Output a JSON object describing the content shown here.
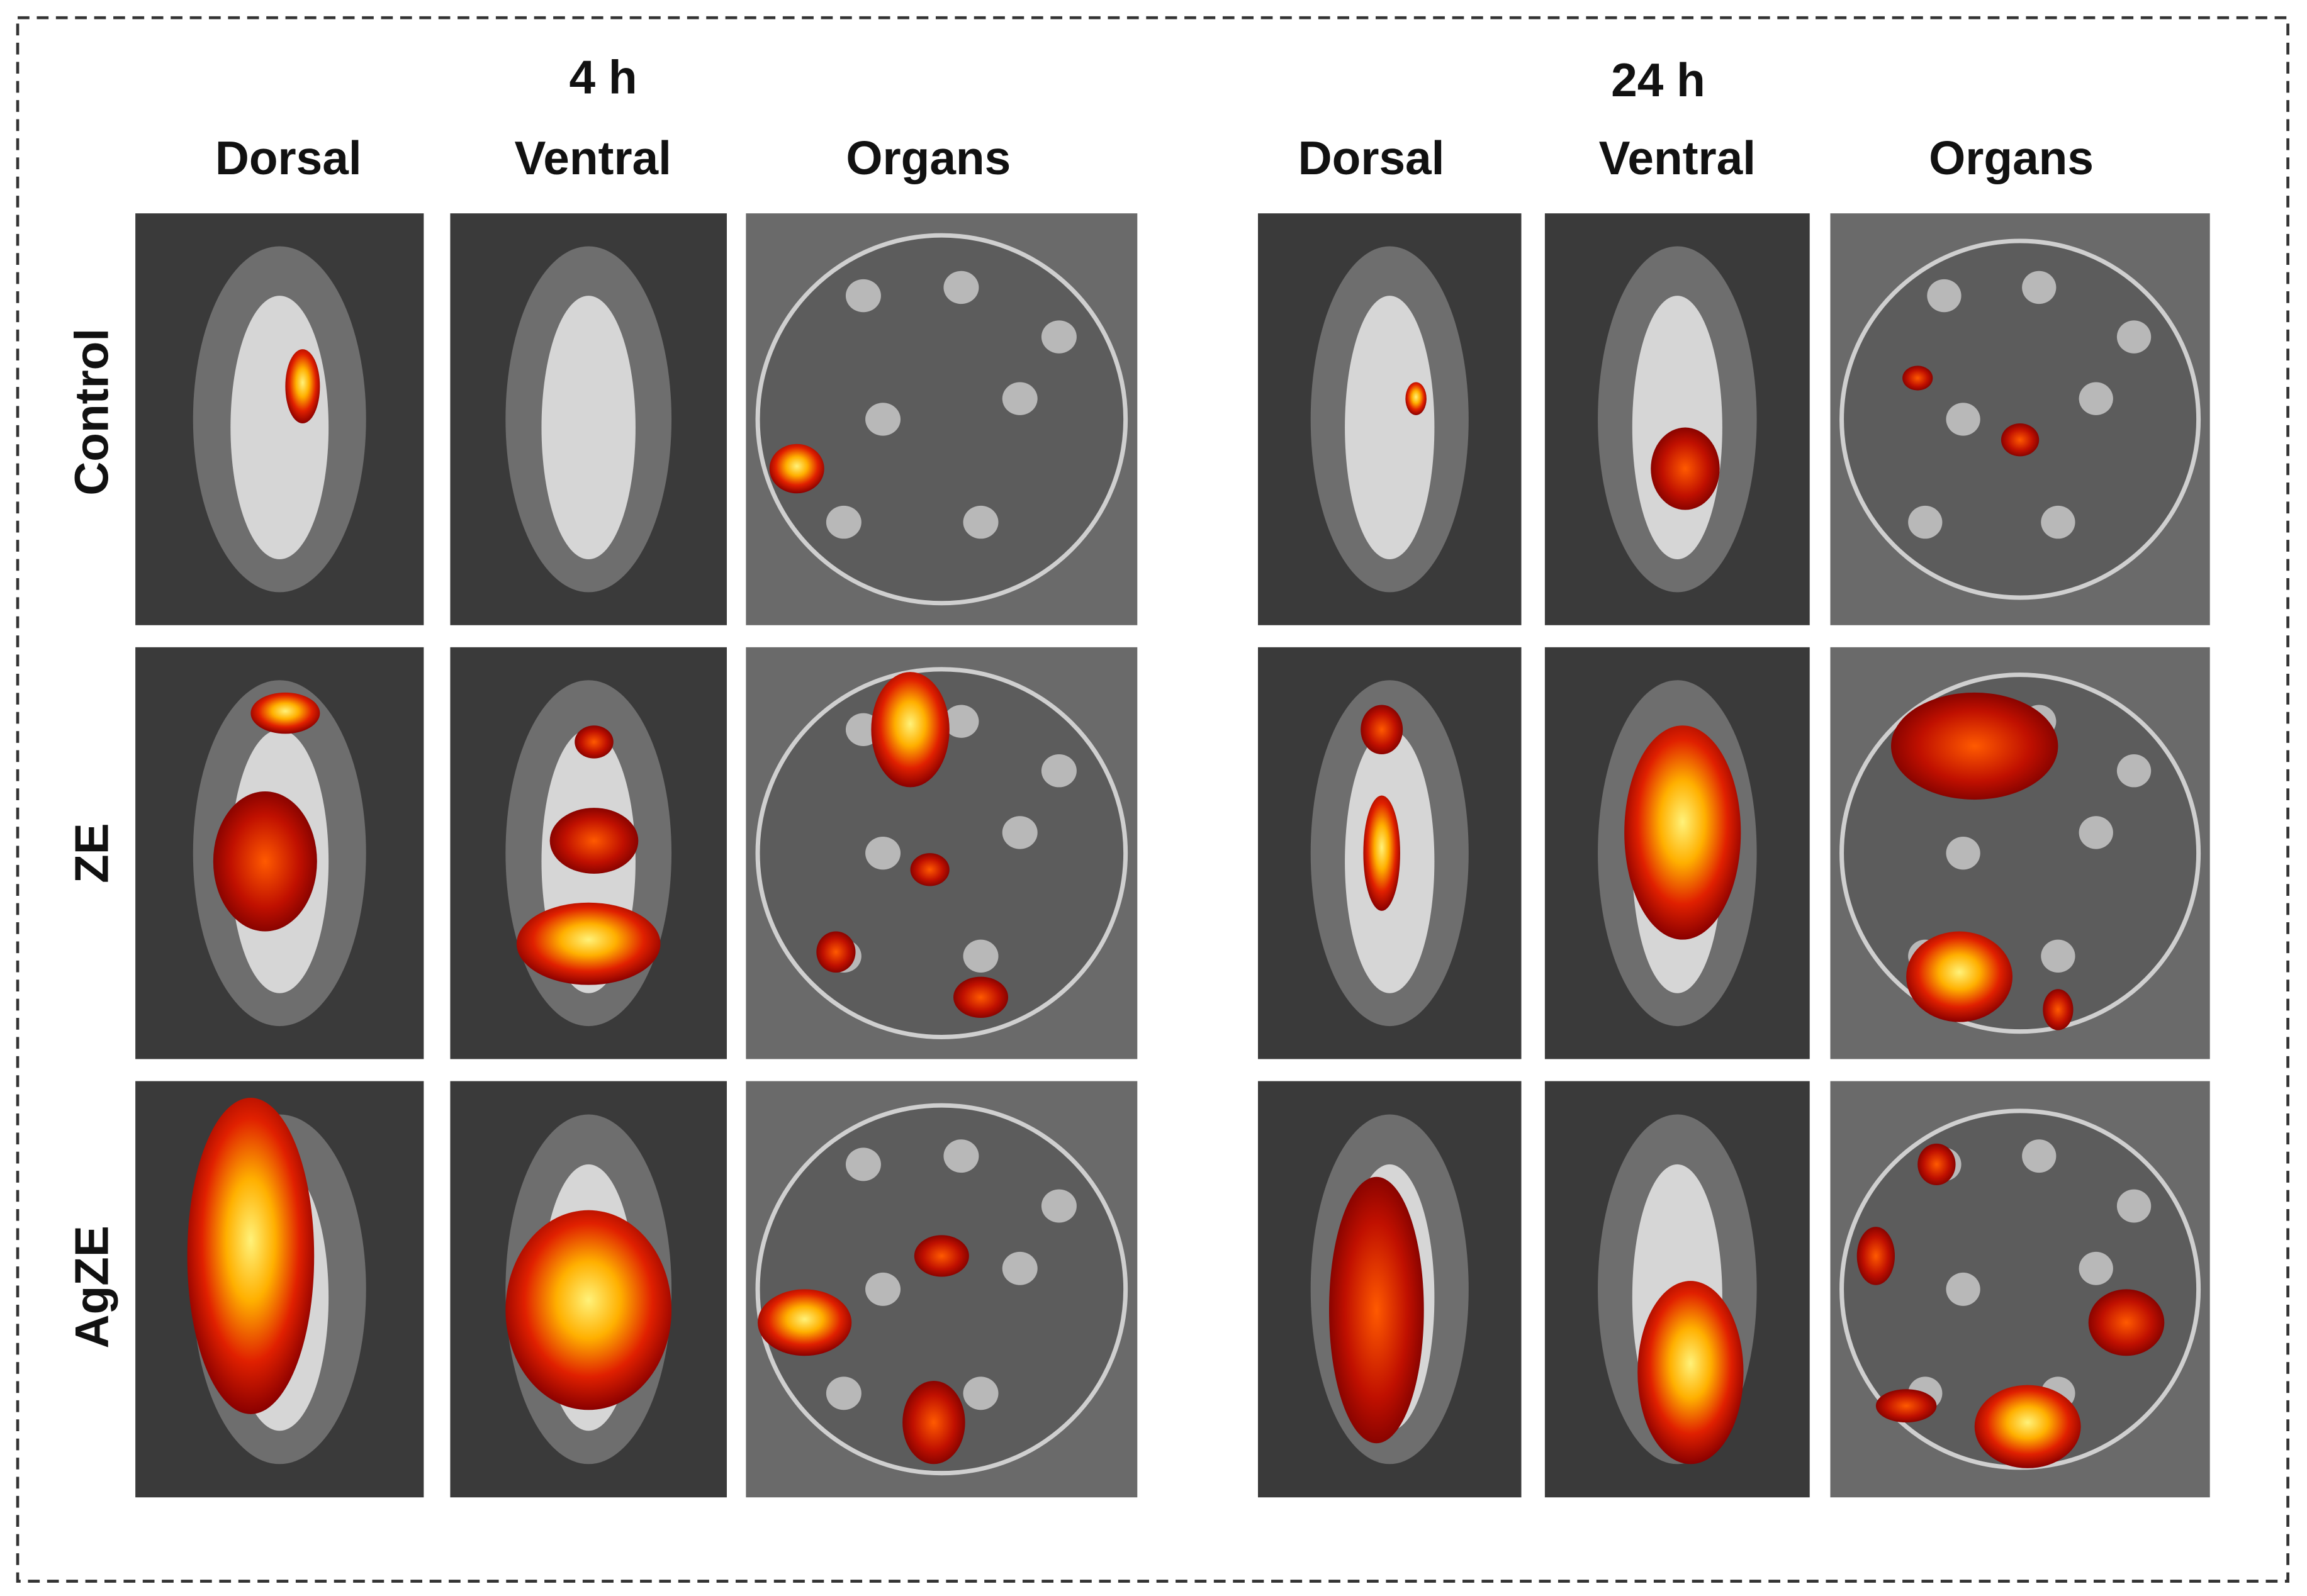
{
  "groups": [
    {
      "time": "4 h",
      "views": [
        "Dorsal",
        "Ventral",
        "Organs"
      ]
    },
    {
      "time": "24 h",
      "views": [
        "Dorsal",
        "Ventral",
        "Organs"
      ]
    }
  ],
  "rows": [
    "Control",
    "ZE",
    "AgZE"
  ]
}
